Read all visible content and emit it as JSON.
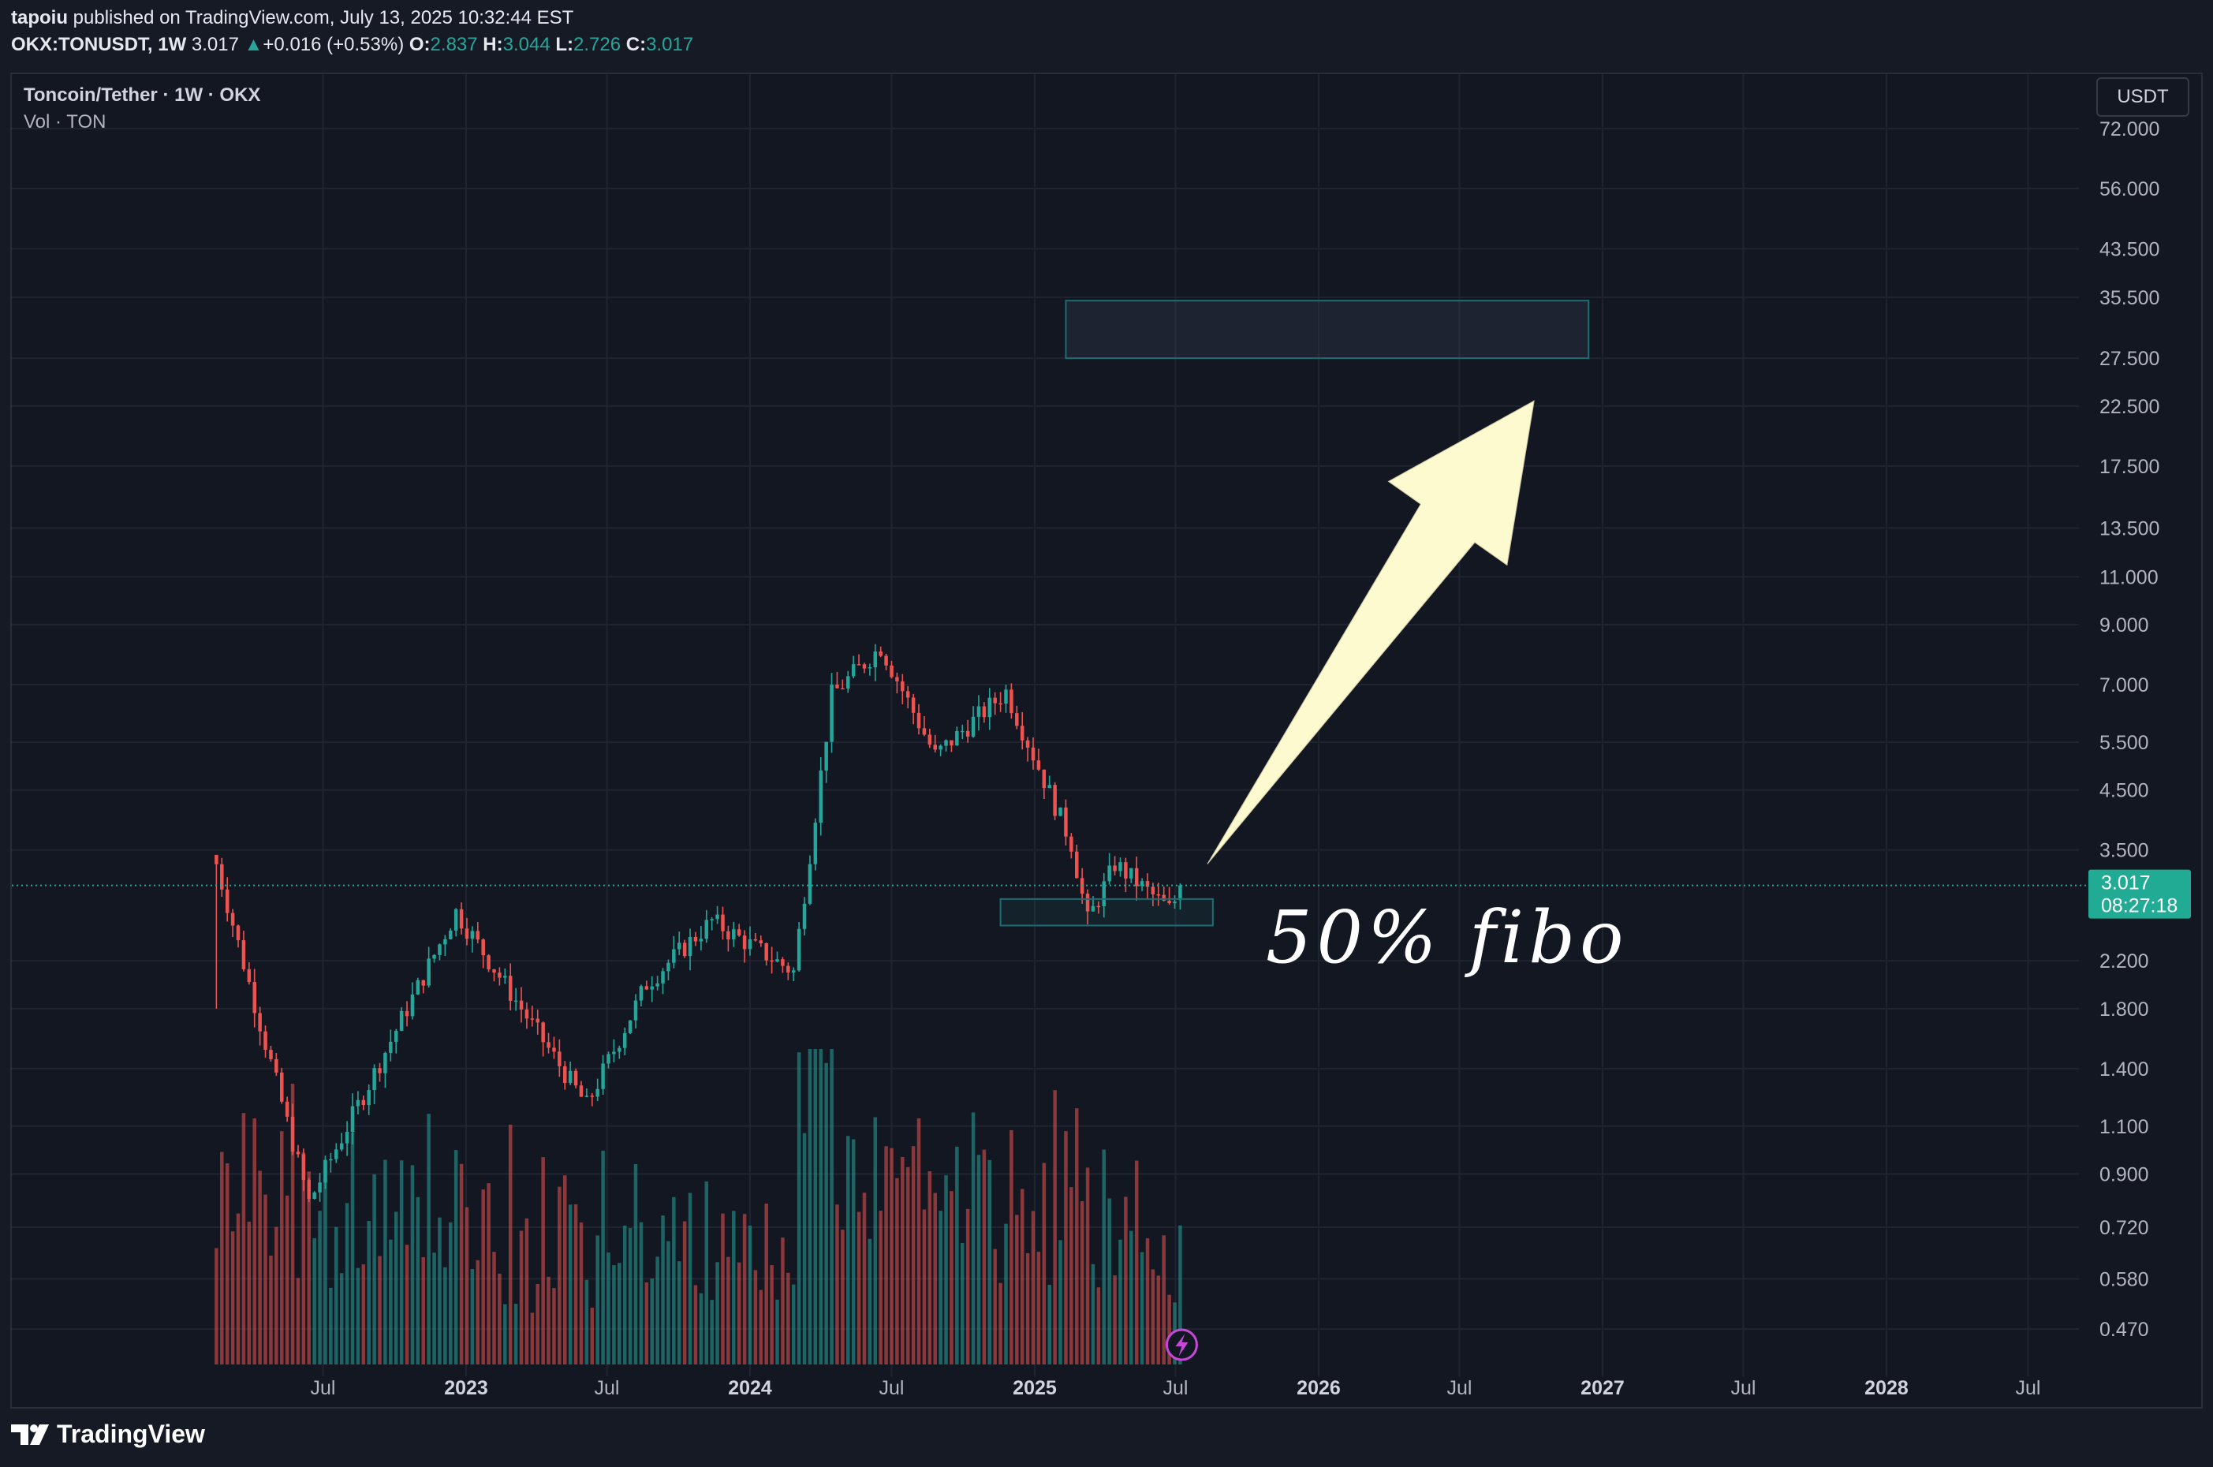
{
  "header": {
    "publisher": "tapoiu",
    "published_text": " published on TradingView.com, July 13, 2025 10:32:44 EST",
    "symbol_line": "OKX:TONUSDT, 1W",
    "last": "3.017",
    "change": "+0.016 (+0.53%)",
    "o_label": "O:",
    "o": "2.837",
    "h_label": "H:",
    "h": "3.044",
    "l_label": "L:",
    "l": "2.726",
    "c_label": "C:",
    "c": "3.017"
  },
  "legend": {
    "title": "Toncoin/Tether · 1W · OKX",
    "volume": "Vol · TON"
  },
  "currency_button": "USDT",
  "price_badge": {
    "price": "3.017",
    "countdown": "08:27:18"
  },
  "annotation_text": "50% fibo",
  "footer": {
    "logo_text": "TradingView"
  },
  "colors": {
    "background": "#131722",
    "up": "#26a69a",
    "down": "#ef5350",
    "arrow_fill": "#fdfad0",
    "zone_stroke": "#1b6f73",
    "grid": "#1f2430"
  },
  "chart_data": {
    "type": "candlestick",
    "scale": "log",
    "price_axis_labels": [
      "72.000",
      "56.000",
      "43.500",
      "35.500",
      "27.500",
      "22.500",
      "17.500",
      "13.500",
      "11.000",
      "9.000",
      "7.000",
      "5.500",
      "4.500",
      "3.500",
      "2.200",
      "1.800",
      "1.400",
      "1.100",
      "0.900",
      "0.720",
      "0.580",
      "0.470"
    ],
    "time_axis_labels": [
      "Jul",
      "2023",
      "Jul",
      "2024",
      "Jul",
      "2025",
      "Jul",
      "2026",
      "Jul",
      "2027",
      "Jul",
      "2028",
      "Jul"
    ],
    "time_axis_bold": [
      false,
      true,
      false,
      true,
      false,
      true,
      false,
      true,
      false,
      true,
      false,
      true,
      false
    ],
    "current_price": 3.017,
    "target_zone": {
      "from_date": "2025-02-10",
      "to_date": "2026-12-14",
      "low": 27.5,
      "high": 35.0
    },
    "support_zone": {
      "from_date": "2024-11-18",
      "to_date": "2025-08-18",
      "low": 2.55,
      "high": 2.85
    },
    "arrow": {
      "from_date": "2025-08-11",
      "from_price": 3.3,
      "to_date": "2026-10-05",
      "to_price": 23.0
    },
    "key_points": [
      {
        "date": "2022-02-14",
        "price": 3.3
      },
      {
        "date": "2022-06-13",
        "price": 0.8
      },
      {
        "date": "2022-12-19",
        "price": 2.7
      },
      {
        "date": "2023-06-05",
        "price": 1.2
      },
      {
        "date": "2023-08-21",
        "price": 2.0
      },
      {
        "date": "2023-11-13",
        "price": 2.6
      },
      {
        "date": "2024-02-26",
        "price": 2.1
      },
      {
        "date": "2024-04-15",
        "price": 6.7
      },
      {
        "date": "2024-06-17",
        "price": 8.2
      },
      {
        "date": "2024-08-26",
        "price": 5.2
      },
      {
        "date": "2024-11-25",
        "price": 6.8
      },
      {
        "date": "2025-02-17",
        "price": 3.6
      },
      {
        "date": "2025-03-10",
        "price": 2.6
      },
      {
        "date": "2025-04-14",
        "price": 3.3
      },
      {
        "date": "2025-06-23",
        "price": 2.73
      },
      {
        "date": "2025-07-13",
        "price": 3.017
      }
    ]
  }
}
